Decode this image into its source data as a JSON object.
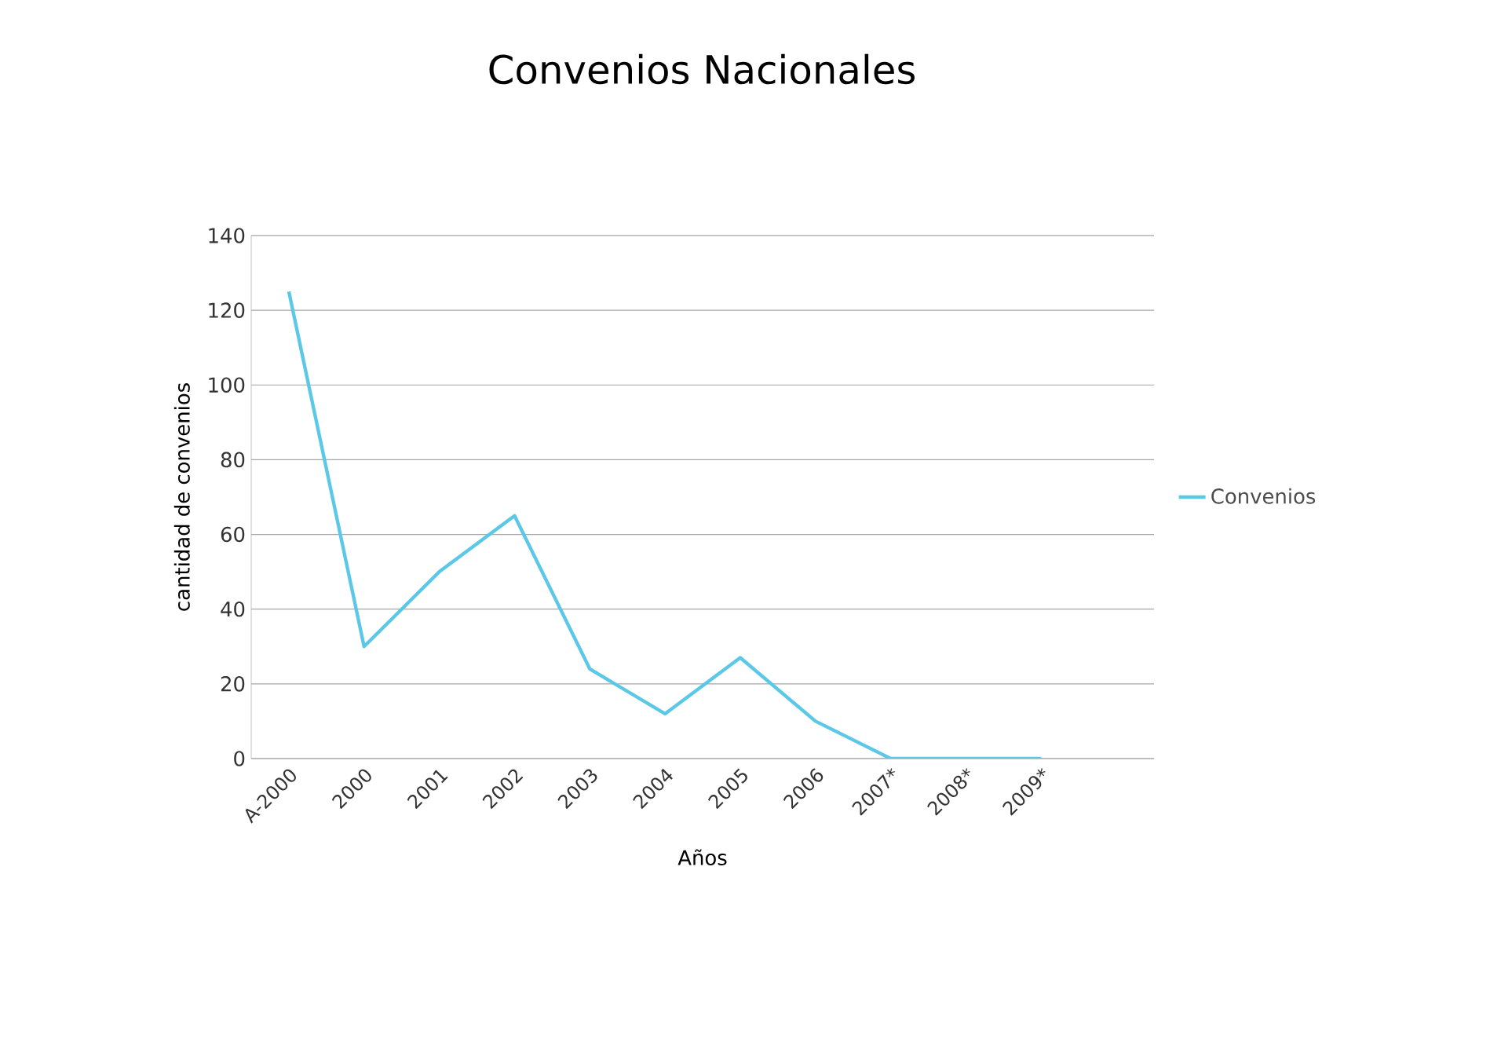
{
  "chart_data": {
    "type": "line",
    "title": "Convenios Nacionales",
    "xlabel": "Años",
    "ylabel": "cantidad de convenios",
    "categories": [
      "A-2000",
      "2000",
      "2001",
      "2002",
      "2003",
      "2004",
      "2005",
      "2006",
      "2007*",
      "2008*",
      "2009*",
      null
    ],
    "series": [
      {
        "name": "Convenios",
        "color": "#5bc8e8",
        "values": [
          125,
          30,
          50,
          65,
          24,
          12,
          27,
          10,
          0,
          0,
          0,
          null
        ]
      }
    ],
    "ylim": [
      0,
      140
    ],
    "yticks": [
      0,
      20,
      40,
      60,
      80,
      100,
      120,
      140
    ],
    "grid": "y",
    "legend": "right"
  }
}
